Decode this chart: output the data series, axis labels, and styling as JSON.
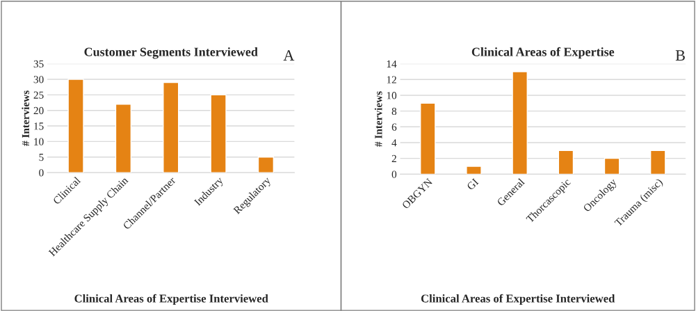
{
  "chart_data": [
    {
      "type": "bar",
      "title": "Customer Segments Interviewed",
      "ylabel": "# Interviews",
      "xlabel": "Clinical Areas of Expertise Interviewed",
      "annotations": [
        "A"
      ],
      "categories": [
        "Clinical",
        "Healthcare Supply Chain",
        "Channel/Partner",
        "Industry",
        "Regulatory"
      ],
      "values": [
        30,
        22,
        29,
        25,
        5
      ],
      "color": "#e58314",
      "ylim": [
        0,
        35
      ],
      "yticks": [
        0,
        5,
        10,
        15,
        20,
        25,
        30,
        35
      ],
      "grid": "y"
    },
    {
      "type": "bar",
      "title": "Clinical Areas of Expertise",
      "ylabel": "# Interviews",
      "xlabel": "Clinical Areas of Expertise Interviewed",
      "annotations": [
        "B"
      ],
      "categories": [
        "OBGYN",
        "GI",
        "General",
        "Thorcascopic",
        "Oncology",
        "Trauma (misc)"
      ],
      "values": [
        9,
        1,
        13,
        3,
        2,
        3
      ],
      "color": "#e58314",
      "ylim": [
        0,
        14
      ],
      "yticks": [
        0,
        2,
        4,
        6,
        8,
        10,
        12,
        14
      ],
      "grid": "y"
    }
  ]
}
